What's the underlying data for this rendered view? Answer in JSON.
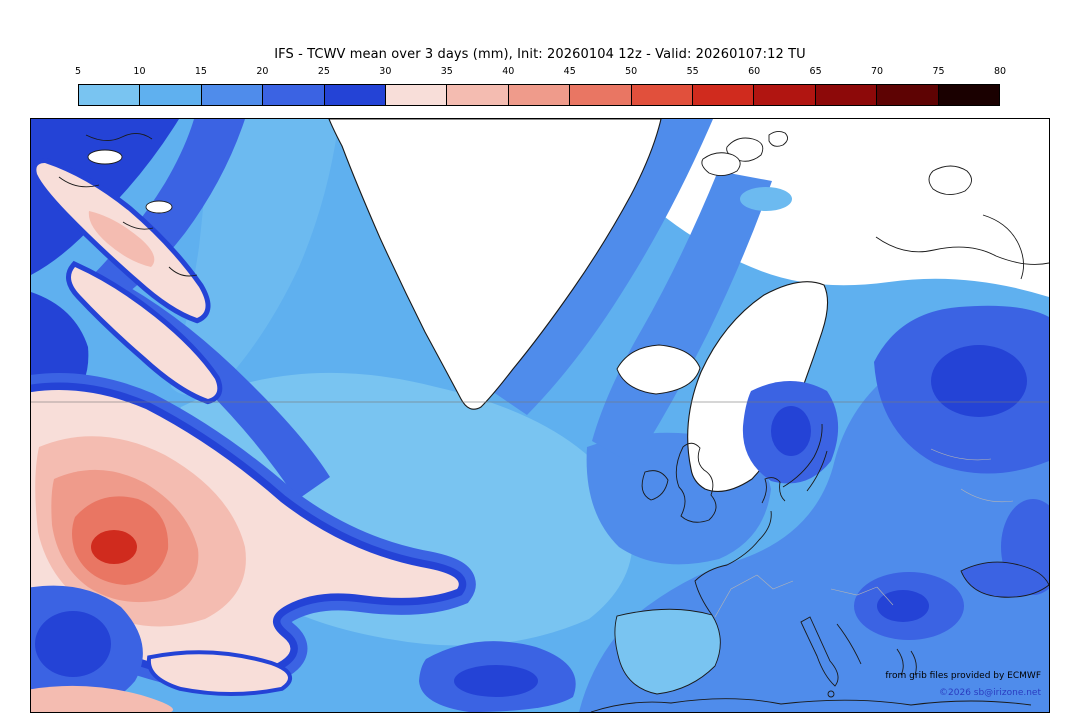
{
  "header": {
    "title": "IFS - TCWV mean over 3 days (mm), Init: 20260104 12z - Valid: 20260107:12 TU"
  },
  "colorbar": {
    "tick_labels": [
      "5",
      "10",
      "15",
      "20",
      "25",
      "30",
      "35",
      "40",
      "45",
      "50",
      "55",
      "60",
      "65",
      "70",
      "75",
      "80"
    ],
    "segment_colors": [
      "#79c4f1",
      "#5fb0ef",
      "#4f8ceb",
      "#3b63e3",
      "#2443d6",
      "#f8ded9",
      "#f4bcb1",
      "#ef9b8b",
      "#e97663",
      "#e1503c",
      "#d02b1e",
      "#b11511",
      "#8d0909",
      "#5e0303",
      "#1a0000"
    ]
  },
  "map": {
    "attribution_line1": "from grib files provided by ECMWF",
    "attribution_line2": "©2026 sb@irizone.net",
    "attribution_line2_color": "#2a3cc0",
    "land_low_value_color": "#ffffff",
    "coastline_color": "#1a1a1a"
  },
  "chart_data": {
    "type": "heatmap",
    "title": "IFS - TCWV mean over 3 days (mm), Init: 20260104 12z - Valid: 20260107:12 TU",
    "model": "IFS",
    "variable": "TCWV mean over 3 days",
    "unit": "mm",
    "init_time": "20260104 12z",
    "valid_time": "20260107:12 TU",
    "scale_ticks_mm": [
      5,
      10,
      15,
      20,
      25,
      30,
      35,
      40,
      45,
      50,
      55,
      60,
      65,
      70,
      75,
      80
    ],
    "scale_min": 5,
    "scale_max": 80,
    "scale_interval": 5,
    "legend_position": "top",
    "palette_description": "blues 5-30 mm, pale pink to dark red 30-80 mm, white below 5 mm"
  }
}
